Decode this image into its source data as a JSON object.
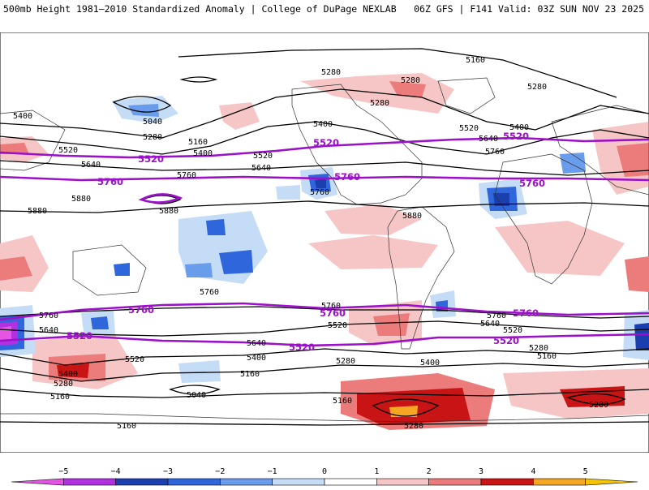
{
  "header": {
    "title": "500mb Height 1981–2010 Standardized Anomaly | College of DuPage NEXLAB",
    "run_info": "06Z GFS | F141 Valid: 03Z SUN NOV 23 2025"
  },
  "colors": {
    "strong_purple": "#e455e4",
    "purple": "#9a10c6",
    "dark_blue": "#1c4fd2",
    "blue": "#5b8ce6",
    "light_blue": "#c4dcf6",
    "light_red": "#f6c6c6",
    "red": "#ec7b7b",
    "dark_red": "#c81414",
    "orange": "#f5a623",
    "key_contour": "#9b10c8",
    "land_border": "#444444"
  },
  "colorbar": {
    "ticks": [
      "−5",
      "−4",
      "−3",
      "−2",
      "−1",
      "0",
      "1",
      "2",
      "3",
      "4",
      "5"
    ],
    "bins": [
      {
        "from": -6,
        "to": -5,
        "color": "#e455e4"
      },
      {
        "from": -5,
        "to": -4,
        "color": "#b031e0"
      },
      {
        "from": -4,
        "to": -3,
        "color": "#1c3fb0"
      },
      {
        "from": -3,
        "to": -2,
        "color": "#2f66dc"
      },
      {
        "from": -2,
        "to": -1,
        "color": "#6a9cec"
      },
      {
        "from": -1,
        "to": 0,
        "color": "#c4dcf6"
      },
      {
        "from": 0,
        "to": 1,
        "color": "#ffffff"
      },
      {
        "from": 1,
        "to": 2,
        "color": "#f6c6c6"
      },
      {
        "from": 2,
        "to": 3,
        "color": "#ec7b7b"
      },
      {
        "from": 3,
        "to": 4,
        "color": "#c81414"
      },
      {
        "from": 4,
        "to": 5,
        "color": "#f5a623"
      },
      {
        "from": 5,
        "to": 6,
        "color": "#f5c400"
      }
    ]
  },
  "contour_labels": {
    "l5160": "5160",
    "l5280": "5280",
    "l5400": "5400",
    "l5520": "5520",
    "l5640": "5640",
    "l5760": "5760",
    "l5880": "5880",
    "l5040": "5040"
  }
}
